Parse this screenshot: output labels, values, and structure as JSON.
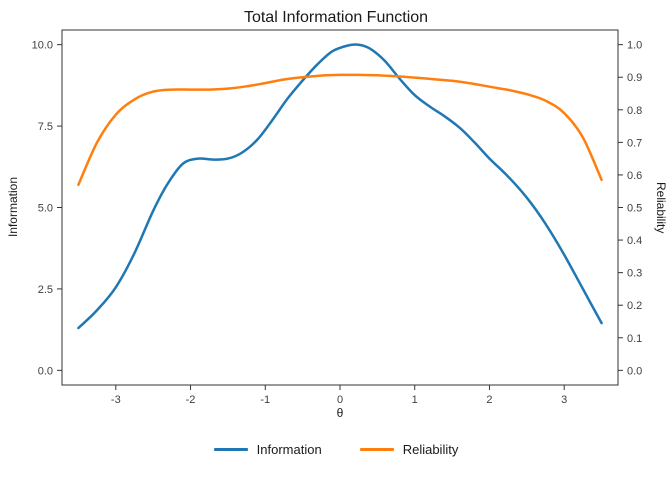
{
  "title": "Total Information Function",
  "chart_data": {
    "type": "line",
    "title": "Total Information Function",
    "xlabel": "θ",
    "ylabel_left": "Information",
    "ylabel_right": "Reliability",
    "grid": false,
    "legend_position": "bottom",
    "xlim": [
      -3.72,
      3.72
    ],
    "ylim_left": [
      -0.45,
      10.45
    ],
    "ylim_right": [
      -0.045,
      1.045
    ],
    "x_ticks": [
      -3,
      -2,
      -1,
      0,
      1,
      2,
      3
    ],
    "x_tick_labels": [
      "-3",
      "-2",
      "-1",
      "0",
      "1",
      "2",
      "3"
    ],
    "left_ticks": [
      0,
      2.5,
      5,
      7.5,
      10
    ],
    "left_tick_labels": [
      "0.0",
      "2.5",
      "5.0",
      "7.5",
      "10.0"
    ],
    "right_ticks": [
      0,
      0.1,
      0.2,
      0.3,
      0.4,
      0.5,
      0.6,
      0.7,
      0.8,
      0.9,
      1.0
    ],
    "right_tick_labels": [
      "0.0",
      "0.1",
      "0.2",
      "0.3",
      "0.4",
      "0.5",
      "0.6",
      "0.7",
      "0.8",
      "0.9",
      "1.0"
    ],
    "series": [
      {
        "name": "Information",
        "axis": "left",
        "color": "#1f77b4",
        "x": [
          -3.5,
          -3.25,
          -3,
          -2.75,
          -2.5,
          -2.3,
          -2.1,
          -1.9,
          -1.7,
          -1.5,
          -1.3,
          -1.1,
          -0.9,
          -0.7,
          -0.5,
          -0.3,
          -0.1,
          0.1,
          0.25,
          0.4,
          0.6,
          0.8,
          1.0,
          1.2,
          1.4,
          1.6,
          1.8,
          2.0,
          2.25,
          2.5,
          2.75,
          3.0,
          3.25,
          3.5
        ],
        "y": [
          1.3,
          1.85,
          2.55,
          3.6,
          4.9,
          5.75,
          6.35,
          6.5,
          6.47,
          6.5,
          6.7,
          7.1,
          7.7,
          8.35,
          8.9,
          9.4,
          9.8,
          9.97,
          10.0,
          9.88,
          9.5,
          8.95,
          8.45,
          8.1,
          7.8,
          7.45,
          7.0,
          6.5,
          5.95,
          5.3,
          4.5,
          3.55,
          2.5,
          1.45
        ]
      },
      {
        "name": "Reliability",
        "axis": "right",
        "color": "#ff7f0e",
        "x": [
          -3.5,
          -3.25,
          -3,
          -2.75,
          -2.5,
          -2.25,
          -2,
          -1.75,
          -1.5,
          -1.25,
          -1,
          -0.75,
          -0.5,
          -0.25,
          0,
          0.25,
          0.5,
          0.75,
          1.0,
          1.25,
          1.5,
          1.75,
          2.0,
          2.25,
          2.5,
          2.75,
          3.0,
          3.25,
          3.5
        ],
        "y": [
          0.57,
          0.7,
          0.785,
          0.832,
          0.856,
          0.862,
          0.862,
          0.862,
          0.865,
          0.872,
          0.882,
          0.893,
          0.9,
          0.905,
          0.907,
          0.907,
          0.906,
          0.903,
          0.899,
          0.894,
          0.889,
          0.881,
          0.871,
          0.861,
          0.848,
          0.828,
          0.79,
          0.715,
          0.585
        ]
      }
    ]
  },
  "legend": {
    "items": [
      {
        "label": "Information",
        "color": "#1f77b4"
      },
      {
        "label": "Reliability",
        "color": "#ff7f0e"
      }
    ]
  },
  "style": {
    "axis_color": "#333333",
    "tick_label_color": "#404040"
  }
}
